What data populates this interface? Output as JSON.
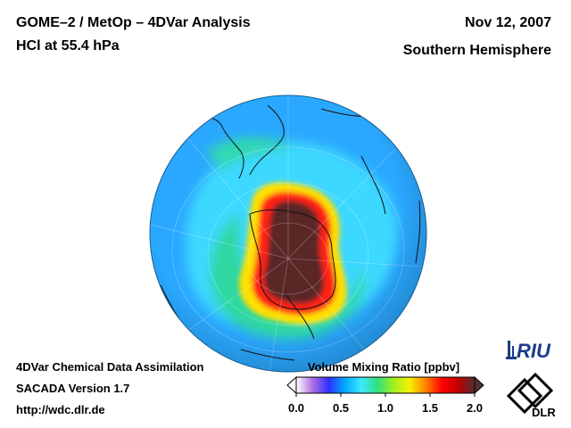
{
  "header": {
    "title_line1": "GOME–2 / MetOp – 4DVar Analysis",
    "title_line2": "HCl at 55.4 hPa",
    "date": "Nov 12, 2007",
    "region": "Southern Hemisphere"
  },
  "footer": {
    "line1": "4DVar Chemical Data Assimilation",
    "line2": "SACADA Version 1.7",
    "line3": "http://wdc.dlr.de"
  },
  "colorbar": {
    "title": "Volume Mixing Ratio [ppbv]",
    "ticks": [
      "0.0",
      "0.5",
      "1.0",
      "1.5",
      "2.0"
    ],
    "min": 0.0,
    "max": 2.0,
    "colors": [
      "#ffffff",
      "#b070e0",
      "#3030ff",
      "#00a8ff",
      "#40e8ff",
      "#30e080",
      "#a0f020",
      "#f8f000",
      "#ff8000",
      "#ff0000",
      "#c00000",
      "#503030"
    ]
  },
  "logos": {
    "riu": "RIU",
    "dlr": "DLR"
  },
  "map": {
    "projection": "orthographic",
    "hemisphere": "south",
    "field_colors": {
      "background": "#2ab0ff",
      "ring": "#3cdcff",
      "band": "#30d8a0",
      "high_edge": "#ffe000",
      "high_mid": "#ff2020",
      "core": "#5a2a2a"
    }
  }
}
